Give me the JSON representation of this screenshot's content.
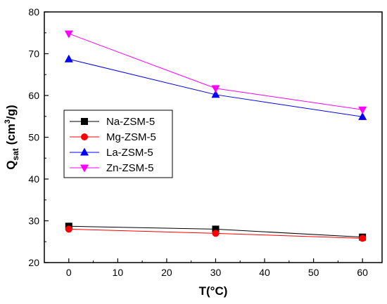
{
  "chart_data": {
    "type": "line",
    "x": [
      0,
      30,
      60
    ],
    "xlabel": "T(°C)",
    "ylabel": {
      "main": "Q",
      "sub": "sat",
      "unit_pre": " (cm",
      "unit_sup": "3",
      "unit_post": "/g)"
    },
    "xlim": [
      -5,
      64
    ],
    "ylim": [
      20,
      80
    ],
    "xticks": [
      0,
      10,
      20,
      30,
      40,
      50,
      60
    ],
    "yticks": [
      20,
      30,
      40,
      50,
      60,
      70,
      80
    ],
    "legend_position": "center-left",
    "series": [
      {
        "name": "Na-ZSM-5",
        "values": [
          28.7,
          28.0,
          26.1
        ],
        "color": "#000000",
        "marker": "square"
      },
      {
        "name": "Mg-ZSM-5",
        "values": [
          28.0,
          27.0,
          25.8
        ],
        "color": "#ff0000",
        "marker": "circle"
      },
      {
        "name": "La-ZSM-5",
        "values": [
          68.7,
          60.2,
          54.9
        ],
        "color": "#0000ff",
        "marker": "triangle-up"
      },
      {
        "name": "Zn-ZSM-5",
        "values": [
          74.8,
          61.7,
          56.6
        ],
        "color": "#ff00ff",
        "marker": "triangle-down"
      }
    ]
  }
}
